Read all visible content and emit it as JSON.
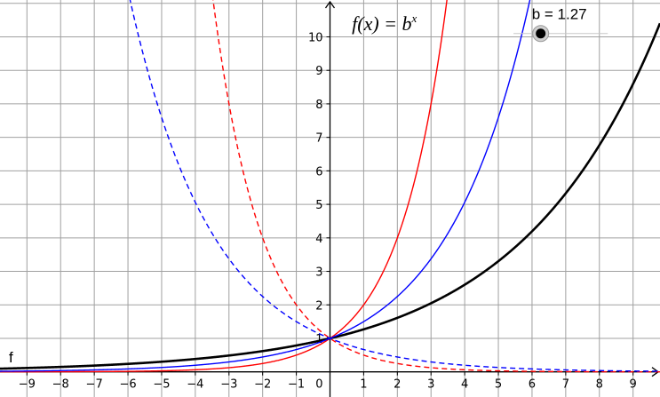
{
  "chart_data": {
    "type": "line",
    "title": "",
    "formula": {
      "prefix": "f(x) = ",
      "base": "b",
      "exponent": "x"
    },
    "xlim": [
      -9.8,
      9.8
    ],
    "ylim": [
      -0.75,
      11.1
    ],
    "grid": true,
    "x_ticks": [
      -9,
      -8,
      -7,
      -6,
      -5,
      -4,
      -3,
      -2,
      -1,
      1,
      2,
      3,
      4,
      5,
      6,
      7,
      8,
      9
    ],
    "y_ticks": [
      1,
      2,
      3,
      4,
      5,
      6,
      7,
      8,
      9,
      10
    ],
    "origin_label": "0",
    "slider": {
      "name": "b",
      "value": 1.27,
      "label": "b = 1.27",
      "range_max": 1.5
    },
    "series": [
      {
        "name": "f",
        "base": 1.27,
        "color": "#000000",
        "style": "solid"
      },
      {
        "base": 2,
        "color": "#ff0000",
        "style": "solid"
      },
      {
        "base": 0.5,
        "color": "#ff0000",
        "style": "dashed"
      },
      {
        "base": 1.5,
        "color": "#0000ff",
        "style": "solid"
      },
      {
        "base": 0.6667,
        "color": "#0000ff",
        "style": "dashed"
      }
    ]
  }
}
